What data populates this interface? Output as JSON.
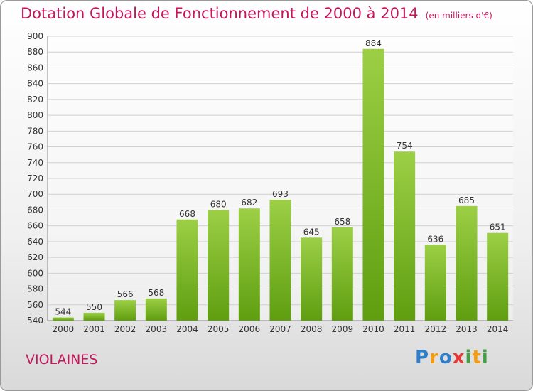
{
  "title": "Dotation Globale de Fonctionnement de 2000 à 2014",
  "unit": "(en milliers d'€)",
  "place": "VIOLAINES",
  "logo": "Proxiti",
  "colors": {
    "title": "#c2185b",
    "bar_light": "#9ccf45",
    "bar_dark": "#5f9e10",
    "grid": "#d0d0d0"
  },
  "chart_data": {
    "type": "bar",
    "title": "Dotation Globale de Fonctionnement de 2000 à 2014",
    "subtitle": "(en milliers d'€)",
    "categories": [
      "2000",
      "2001",
      "2002",
      "2003",
      "2004",
      "2005",
      "2006",
      "2007",
      "2008",
      "2009",
      "2010",
      "2011",
      "2012",
      "2013",
      "2014"
    ],
    "values": [
      544,
      550,
      566,
      568,
      668,
      680,
      682,
      693,
      645,
      658,
      884,
      754,
      636,
      685,
      651
    ],
    "ylim": [
      540,
      900
    ],
    "yticks": [
      540,
      560,
      580,
      600,
      620,
      640,
      660,
      680,
      700,
      720,
      740,
      760,
      780,
      800,
      820,
      840,
      860,
      880,
      900
    ],
    "grid": true,
    "xlabel": "",
    "ylabel": ""
  }
}
